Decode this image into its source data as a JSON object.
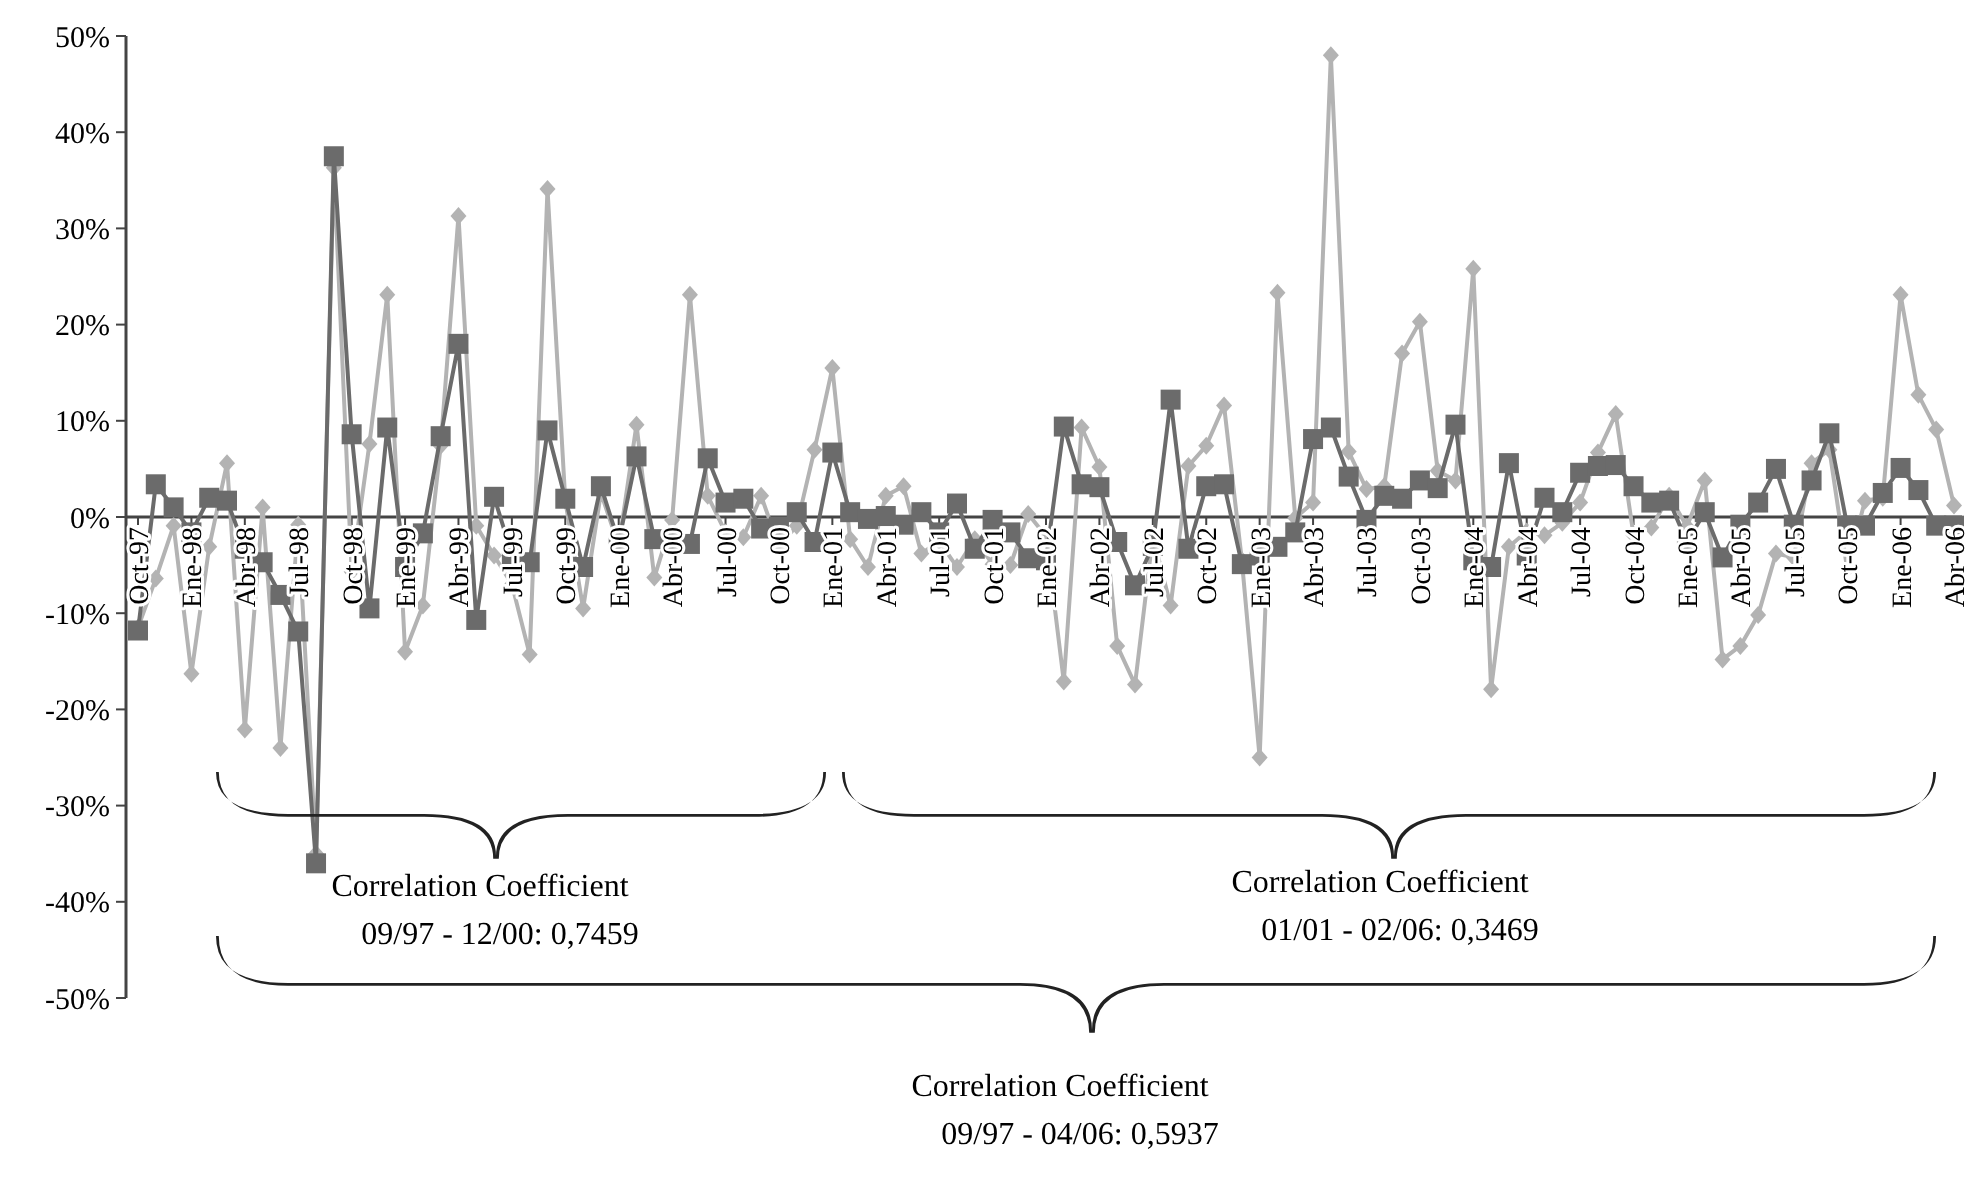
{
  "chart_data": {
    "type": "line",
    "ylim": [
      -50,
      50
    ],
    "yticks": [
      {
        "value": -50,
        "label": "-50%"
      },
      {
        "value": -40,
        "label": "-40%"
      },
      {
        "value": -30,
        "label": "-30%"
      },
      {
        "value": -20,
        "label": "-20%"
      },
      {
        "value": -10,
        "label": "-10%"
      },
      {
        "value": 0,
        "label": "0%"
      },
      {
        "value": 10,
        "label": "10%"
      },
      {
        "value": 20,
        "label": "20%"
      },
      {
        "value": 30,
        "label": "30%"
      },
      {
        "value": 40,
        "label": "40%"
      },
      {
        "value": 50,
        "label": "50%"
      }
    ],
    "categories": [
      "Oct-97",
      null,
      null,
      "Ene-98",
      null,
      null,
      "Abr-98",
      null,
      null,
      "Jul-98",
      null,
      null,
      "Oct-98",
      null,
      null,
      "Ene-99",
      null,
      null,
      "Abr-99",
      null,
      null,
      "Jul-99",
      null,
      null,
      "Oct-99",
      null,
      null,
      "Ene-00",
      null,
      null,
      "Abr-00",
      null,
      null,
      "Jul-00",
      null,
      null,
      "Oct-00",
      null,
      null,
      "Ene-01",
      null,
      null,
      "Abr-01",
      null,
      null,
      "Jul-01",
      null,
      null,
      "Oct-01",
      null,
      null,
      "Ene-02",
      null,
      null,
      "Abr-02",
      null,
      null,
      "Jul-02",
      null,
      null,
      "Oct-02",
      null,
      null,
      "Ene-03",
      null,
      null,
      "Abr-03",
      null,
      null,
      "Jul-03",
      null,
      null,
      "Oct-03",
      null,
      null,
      "Ene-04",
      null,
      null,
      "Abr-04",
      null,
      null,
      "Jul-04",
      null,
      null,
      "Oct-04",
      null,
      null,
      "Ene-05",
      null,
      null,
      "Abr-05",
      null,
      null,
      "Jul-05",
      null,
      null,
      "Oct-05",
      null,
      null,
      "Ene-06",
      null,
      null,
      "Abr-06"
    ],
    "series": [
      {
        "color": "#b3b3b3",
        "marker": "diamond",
        "values": [
          -11.5,
          -6.4,
          -0.9,
          -16.3,
          -3.1,
          5.6,
          -22.1,
          1.0,
          -24.0,
          -0.8,
          -35,
          36.3,
          -5.7,
          7.6,
          23.1,
          -14.0,
          -9.2,
          7.4,
          31.3,
          -0.9,
          -4.0,
          -7,
          -14.3,
          34.1,
          1.7,
          -9.5,
          2.5,
          -3.0,
          9.6,
          -6.3,
          -0.3,
          23.1,
          2.2,
          -1.6,
          -2.1,
          2.2,
          -3.1,
          -0.9,
          7.0,
          15.5,
          -2.3,
          -5.2,
          2.2,
          3.2,
          -3.8,
          -2.5,
          -5.2,
          -2.3,
          -4.9,
          -5.0,
          0.3,
          -2.0,
          -17.1,
          9.3,
          5.2,
          -13.4,
          -17.4,
          -2.0,
          -9.2,
          5.3,
          7.4,
          11.6,
          -4.5,
          -25.0,
          23.3,
          -0.1,
          1.5,
          48.0,
          6.8,
          2.9,
          3.2,
          17.0,
          20.3,
          4.8,
          3.8,
          25.8,
          -17.9,
          -3.1,
          -1.5,
          -1.9,
          -0.6,
          1.5,
          6.7,
          10.7,
          -1.9,
          -1.1,
          2.2,
          -1.0,
          3.8,
          -14.8,
          -13.4,
          -10.2,
          -3.8,
          -4.2,
          5.6,
          7.0,
          -5.4,
          1.7,
          2.0,
          23.1,
          12.7,
          9.1,
          1.2
        ]
      },
      {
        "color": "#6b6b6b",
        "marker": "square",
        "values": [
          -11.8,
          3.4,
          1.0,
          -1.6,
          2.0,
          1.7,
          -3.3,
          -4.7,
          -8.1,
          -11.9,
          -36,
          37.5,
          8.6,
          -9.5,
          9.3,
          -5.2,
          -1.7,
          8.4,
          18.0,
          -10.7,
          2.1,
          -3.9,
          -4.7,
          9.0,
          1.9,
          -5.2,
          3.2,
          -2.6,
          6.3,
          -2.3,
          -2.6,
          -2.8,
          6.1,
          1.5,
          1.9,
          -1.2,
          -1.0,
          0.5,
          -2.6,
          6.7,
          0.5,
          -0.2,
          0.1,
          -0.8,
          0.5,
          -1.6,
          1.4,
          -3.3,
          -0.3,
          -1.6,
          -4.3,
          -4.5,
          9.4,
          3.4,
          3.1,
          -2.6,
          -7.1,
          -3.0,
          12.2,
          -3.3,
          3.2,
          3.4,
          -4.9,
          -4.0,
          -3.1,
          -1.6,
          8.1,
          9.3,
          4.2,
          -0.3,
          2.2,
          1.9,
          3.8,
          3.0,
          9.6,
          -4.5,
          -5.2,
          5.6,
          -4.0,
          2.0,
          0.5,
          4.6,
          5.3,
          5.4,
          3.2,
          1.5,
          1.7,
          -2.6,
          0.5,
          -4.2,
          -0.8,
          1.5,
          5.0,
          -0.8,
          3.8,
          8.7,
          -0.9,
          -0.9,
          2.5,
          5.1,
          2.8,
          -0.9,
          -0.9
        ]
      }
    ],
    "annotations": [
      "Correlation Coefficient\n09/97 - 12/00: 0,7459",
      "Correlation Coefficient\n01/01 - 02/06: 0,3469",
      "Correlation Coefficient\n09/97 - 04/06: 0,5937"
    ]
  }
}
